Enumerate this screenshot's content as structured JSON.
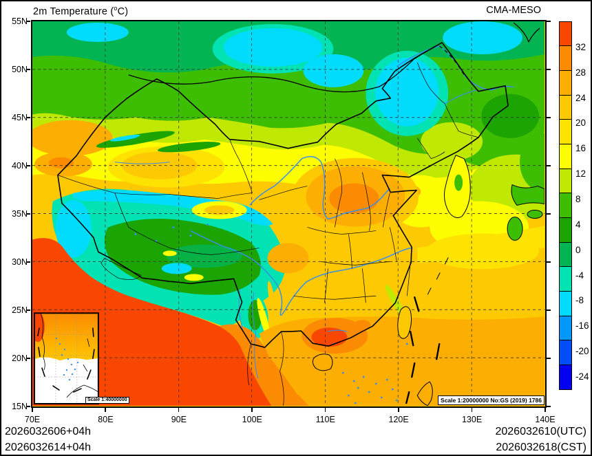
{
  "header": {
    "title_prefix": "2m Temperature (",
    "title_degree": "o",
    "title_suffix": "C)",
    "model": "CMA-MESO"
  },
  "axes": {
    "lat_labels": [
      "55N",
      "50N",
      "45N",
      "40N",
      "35N",
      "30N",
      "25N",
      "20N",
      "15N"
    ],
    "lon_labels": [
      "70E",
      "80E",
      "90E",
      "100E",
      "110E",
      "120E",
      "130E",
      "140E"
    ]
  },
  "colorbar": {
    "boundary_labels": [
      "32",
      "28",
      "24",
      "20",
      "16",
      "12",
      "8",
      "4",
      "0",
      "-4",
      "-8",
      "-16",
      "-20",
      "-24"
    ],
    "segment_colors_top_to_bottom": [
      "#F94701",
      "#FB8B02",
      "#FDAE02",
      "#FDC903",
      "#FEE202",
      "#FEFE02",
      "#BFE803",
      "#3DBE03",
      "#1CA402",
      "#02B452",
      "#02E2B2",
      "#02DCFC",
      "#0398FA",
      "#024EF8",
      "#0202F0"
    ]
  },
  "map": {
    "scale_box_text": "Scale 1:20000000 No:GS (2019) 1786",
    "inset_scale_text": "Scale 1:40000000",
    "grid_color": "#333333",
    "river_color": "#3A8FE8",
    "boundary_color": "#000000"
  },
  "footer": {
    "left_line1": "2026032606+04h",
    "left_line2": "2026032614+04h",
    "right_line1": "2026032610(UTC)",
    "right_line2": "2026032618(CST)"
  }
}
